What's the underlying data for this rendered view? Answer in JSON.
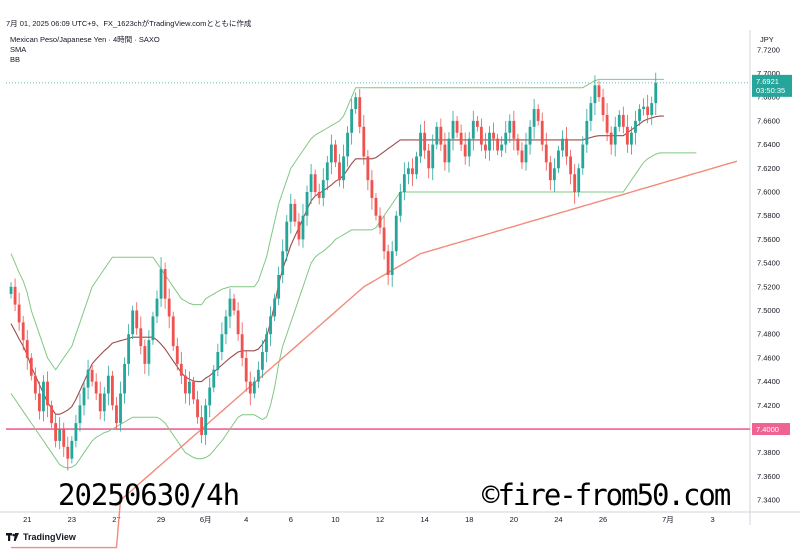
{
  "header": {
    "text": "7月 01, 2025 06:09 UTC+9、FX_1623chがTradingView.comとともに作成"
  },
  "legend": {
    "symbol": "Mexican Peso/Japanese Yen · 4時間 · SAXO",
    "sma": "SMA",
    "bb": "BB"
  },
  "footer": {
    "brand": "TradingView",
    "logo": "tv-logo-icon"
  },
  "overlays": {
    "date_text": "20250630/4h",
    "copyright_text": "©fire-from50.com"
  },
  "colors": {
    "up": "#26a69a",
    "down": "#ef5350",
    "bb_band": "#81c784",
    "bb_basis": "#9c4a4a",
    "sma": "#f28b7a",
    "hline": "#f06292",
    "price_tag": "#26a69a"
  },
  "chart_data": {
    "type": "candlestick",
    "currency": "JPY",
    "ylim": [
      7.33,
      7.735
    ],
    "y_ticks": [
      "7.3400",
      "7.3600",
      "7.3800",
      "7.4000",
      "7.4200",
      "7.4400",
      "7.4600",
      "7.4800",
      "7.5000",
      "7.5200",
      "7.5400",
      "7.5600",
      "7.5800",
      "7.6000",
      "7.6200",
      "7.6400",
      "7.6600",
      "7.6800",
      "7.7000",
      "7.7200"
    ],
    "x_ticks": [
      {
        "label": "21",
        "i": 4
      },
      {
        "label": "23",
        "i": 15
      },
      {
        "label": "27",
        "i": 26
      },
      {
        "label": "29",
        "i": 37
      },
      {
        "label": "6月",
        "i": 48
      },
      {
        "label": "4",
        "i": 58
      },
      {
        "label": "6",
        "i": 69
      },
      {
        "label": "10",
        "i": 80
      },
      {
        "label": "12",
        "i": 91
      },
      {
        "label": "14",
        "i": 102
      },
      {
        "label": "18",
        "i": 113
      },
      {
        "label": "20",
        "i": 124
      },
      {
        "label": "24",
        "i": 135
      },
      {
        "label": "26",
        "i": 146
      },
      {
        "label": "7月",
        "i": 162
      },
      {
        "label": "3",
        "i": 173
      }
    ],
    "x_count": 182,
    "current_price": {
      "value": 7.6921,
      "label": "7.6921",
      "countdown": "03:50:35"
    },
    "horizontal_line": {
      "value": 7.4,
      "label": "7.4000"
    },
    "close": [
      7.52,
      7.505,
      7.49,
      7.475,
      7.46,
      7.445,
      7.43,
      7.415,
      7.44,
      7.42,
      7.405,
      7.39,
      7.4,
      7.385,
      7.375,
      7.39,
      7.405,
      7.42,
      7.435,
      7.45,
      7.44,
      7.43,
      7.415,
      7.43,
      7.445,
      7.42,
      7.405,
      7.43,
      7.455,
      7.48,
      7.5,
      7.485,
      7.47,
      7.455,
      7.475,
      7.495,
      7.51,
      7.535,
      7.51,
      7.495,
      7.47,
      7.455,
      7.445,
      7.43,
      7.44,
      7.425,
      7.41,
      7.395,
      7.42,
      7.435,
      7.45,
      7.465,
      7.48,
      7.495,
      7.51,
      7.5,
      7.48,
      7.46,
      7.44,
      7.43,
      7.44,
      7.45,
      7.465,
      7.48,
      7.495,
      7.51,
      7.53,
      7.55,
      7.575,
      7.59,
      7.575,
      7.56,
      7.58,
      7.6,
      7.615,
      7.6,
      7.595,
      7.61,
      7.625,
      7.64,
      7.625,
      7.61,
      7.63,
      7.65,
      7.67,
      7.68,
      7.655,
      7.63,
      7.61,
      7.595,
      7.58,
      7.57,
      7.55,
      7.53,
      7.55,
      7.58,
      7.6,
      7.615,
      7.62,
      7.615,
      7.63,
      7.65,
      7.635,
      7.62,
      7.64,
      7.655,
      7.64,
      7.625,
      7.645,
      7.66,
      7.65,
      7.64,
      7.63,
      7.645,
      7.66,
      7.655,
      7.64,
      7.635,
      7.65,
      7.645,
      7.635,
      7.64,
      7.65,
      7.66,
      7.645,
      7.635,
      7.625,
      7.64,
      7.655,
      7.67,
      7.66,
      7.64,
      7.625,
      7.61,
      7.62,
      7.635,
      7.645,
      7.63,
      7.615,
      7.6,
      7.62,
      7.64,
      7.66,
      7.675,
      7.69,
      7.68,
      7.665,
      7.65,
      7.64,
      7.655,
      7.665,
      7.655,
      7.64,
      7.65,
      7.66,
      7.67,
      7.672,
      7.665,
      7.675,
      7.6921
    ],
    "bb_upper": [
      7.548,
      7.54,
      7.532,
      7.525,
      7.515,
      7.5,
      7.49,
      7.48,
      7.47,
      7.46,
      7.455,
      7.45,
      7.455,
      7.46,
      7.465,
      7.47,
      7.48,
      7.49,
      7.5,
      7.51,
      7.52,
      7.525,
      7.53,
      7.535,
      7.54,
      7.545,
      7.545,
      7.545,
      7.545,
      7.545,
      7.545,
      7.545,
      7.545,
      7.545,
      7.545,
      7.545,
      7.54,
      7.535,
      7.53,
      7.525,
      7.52,
      7.515,
      7.51,
      7.508,
      7.506,
      7.505,
      7.505,
      7.505,
      7.51,
      7.512,
      7.514,
      7.516,
      7.518,
      7.519,
      7.52,
      7.52,
      7.52,
      7.52,
      7.52,
      7.52,
      7.52,
      7.525,
      7.535,
      7.545,
      7.56,
      7.575,
      7.59,
      7.6,
      7.61,
      7.62,
      7.625,
      7.63,
      7.635,
      7.64,
      7.645,
      7.648,
      7.65,
      7.652,
      7.654,
      7.656,
      7.658,
      7.66,
      7.664,
      7.672,
      7.68,
      7.688,
      7.688,
      7.688,
      7.688,
      7.688,
      7.688,
      7.688,
      7.688,
      7.688,
      7.688,
      7.688,
      7.688,
      7.688,
      7.688,
      7.688,
      7.688,
      7.688,
      7.688,
      7.688,
      7.688,
      7.688,
      7.688,
      7.688,
      7.688,
      7.688,
      7.688,
      7.688,
      7.688,
      7.688,
      7.688,
      7.688,
      7.688,
      7.688,
      7.688,
      7.688,
      7.688,
      7.688,
      7.688,
      7.688,
      7.688,
      7.688,
      7.688,
      7.688,
      7.688,
      7.688,
      7.688,
      7.688,
      7.688,
      7.688,
      7.688,
      7.688,
      7.688,
      7.688,
      7.688,
      7.688,
      7.688,
      7.688,
      7.69,
      7.692,
      7.694,
      7.695,
      7.695,
      7.695,
      7.695,
      7.695,
      7.695,
      7.695,
      7.695,
      7.695,
      7.695,
      7.695,
      7.695,
      7.695,
      7.695,
      7.695,
      7.695,
      7.695
    ],
    "bb_lower": [
      7.43,
      7.425,
      7.42,
      7.415,
      7.41,
      7.405,
      7.4,
      7.395,
      7.39,
      7.385,
      7.38,
      7.375,
      7.37,
      7.368,
      7.367,
      7.368,
      7.37,
      7.375,
      7.38,
      7.385,
      7.39,
      7.393,
      7.395,
      7.397,
      7.398,
      7.4,
      7.402,
      7.404,
      7.406,
      7.408,
      7.41,
      7.41,
      7.41,
      7.41,
      7.41,
      7.41,
      7.41,
      7.408,
      7.405,
      7.4,
      7.395,
      7.39,
      7.385,
      7.38,
      7.378,
      7.376,
      7.375,
      7.375,
      7.376,
      7.378,
      7.382,
      7.386,
      7.39,
      7.395,
      7.4,
      7.405,
      7.41,
      7.412,
      7.412,
      7.412,
      7.412,
      7.41,
      7.408,
      7.41,
      7.42,
      7.435,
      7.455,
      7.47,
      7.48,
      7.49,
      7.5,
      7.51,
      7.52,
      7.53,
      7.54,
      7.545,
      7.548,
      7.55,
      7.553,
      7.556,
      7.56,
      7.562,
      7.564,
      7.566,
      7.568,
      7.568,
      7.568,
      7.568,
      7.568,
      7.568,
      7.57,
      7.575,
      7.58,
      7.585,
      7.59,
      7.595,
      7.6,
      7.6,
      7.6,
      7.6,
      7.6,
      7.6,
      7.6,
      7.6,
      7.6,
      7.6,
      7.6,
      7.6,
      7.6,
      7.6,
      7.6,
      7.6,
      7.6,
      7.6,
      7.6,
      7.6,
      7.6,
      7.6,
      7.6,
      7.6,
      7.6,
      7.6,
      7.6,
      7.6,
      7.6,
      7.6,
      7.6,
      7.6,
      7.6,
      7.6,
      7.6,
      7.6,
      7.6,
      7.6,
      7.6,
      7.6,
      7.6,
      7.6,
      7.6,
      7.6,
      7.6,
      7.6,
      7.6,
      7.6,
      7.6,
      7.6,
      7.6,
      7.6,
      7.6,
      7.6,
      7.6,
      7.6,
      7.605,
      7.61,
      7.615,
      7.62,
      7.625,
      7.628,
      7.63,
      7.632,
      7.633,
      7.633,
      7.633,
      7.633,
      7.633,
      7.633,
      7.633,
      7.633,
      7.633,
      7.633
    ],
    "sma_long": [
      7.3,
      7.3,
      7.3,
      7.3,
      7.3,
      7.3,
      7.3,
      7.3,
      7.3,
      7.3,
      7.3,
      7.3,
      7.3,
      7.3,
      7.3,
      7.3,
      7.3,
      7.3,
      7.3,
      7.3,
      7.3,
      7.3,
      7.3,
      7.3,
      7.3,
      7.3,
      7.3,
      7.34,
      7.343,
      7.346,
      7.349,
      7.352,
      7.355,
      7.358,
      7.361,
      7.364,
      7.367,
      7.37,
      7.373,
      7.376,
      7.379,
      7.382,
      7.385,
      7.388,
      7.391,
      7.394,
      7.397,
      7.4,
      7.403,
      7.406,
      7.409,
      7.412,
      7.415,
      7.418,
      7.421,
      7.424,
      7.427,
      7.43,
      7.433,
      7.436,
      7.439,
      7.442,
      7.445,
      7.448,
      7.451,
      7.454,
      7.457,
      7.46,
      7.463,
      7.466,
      7.469,
      7.472,
      7.475,
      7.478,
      7.481,
      7.484,
      7.487,
      7.49,
      7.493,
      7.496,
      7.499,
      7.502,
      7.505,
      7.508,
      7.511,
      7.514,
      7.517,
      7.52,
      7.522,
      7.524,
      7.526,
      7.528,
      7.53,
      7.532,
      7.534,
      7.536,
      7.538,
      7.54,
      7.542,
      7.544,
      7.546,
      7.548,
      7.549,
      7.55,
      7.551,
      7.552,
      7.553,
      7.554,
      7.555,
      7.556,
      7.557,
      7.558,
      7.559,
      7.56,
      7.561,
      7.562,
      7.563,
      7.564,
      7.565,
      7.566,
      7.567,
      7.568,
      7.569,
      7.57,
      7.571,
      7.572,
      7.573,
      7.574,
      7.575,
      7.576,
      7.577,
      7.578,
      7.579,
      7.58,
      7.581,
      7.582,
      7.583,
      7.584,
      7.585,
      7.586,
      7.587,
      7.588,
      7.589,
      7.59,
      7.591,
      7.592,
      7.593,
      7.594,
      7.595,
      7.596,
      7.597,
      7.598,
      7.599,
      7.6,
      7.601,
      7.602,
      7.603,
      7.604,
      7.605,
      7.606,
      7.607,
      7.608,
      7.609,
      7.61,
      7.611,
      7.612,
      7.613,
      7.614,
      7.615,
      7.616,
      7.617,
      7.618,
      7.619,
      7.62,
      7.621,
      7.622,
      7.623,
      7.624,
      7.625,
      7.626
    ]
  }
}
